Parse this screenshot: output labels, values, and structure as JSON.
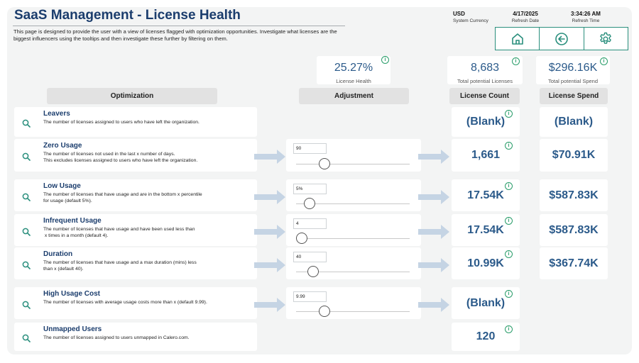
{
  "header": {
    "title": "SaaS Management - License Health",
    "description": "This page is designed to provide the user with a view of licenses flagged with optimization opportunities.  Investigate what licenses are the biggest influencers using the tooltips and then investigate these further by filtering on them.",
    "currency": {
      "value": "USD",
      "label": "System Currency"
    },
    "refresh_date": {
      "value": "4/17/2025",
      "label": "Refresh Date"
    },
    "refresh_time": {
      "value": "3:34:26 AM",
      "label": "Refresh Time"
    }
  },
  "nav": {
    "icons": [
      "home-icon",
      "back-arrow-icon",
      "settings-gear-icon"
    ]
  },
  "kpis": {
    "license_health": {
      "value": "25.27%",
      "label": "License Health"
    },
    "total_licenses": {
      "value": "8,683",
      "label": "Total potential Licenses"
    },
    "total_spend": {
      "value": "$296.16K",
      "label": "Total potential Spend"
    }
  },
  "columns": {
    "optimization": "Optimization",
    "adjustment": "Adjustment",
    "license_count": "License Count",
    "license_spend": "License Spend"
  },
  "rows": [
    {
      "name": "Leavers",
      "desc": [
        "The number of licenses assigned to users who have left the organization."
      ],
      "adjust": null,
      "count": "(Blank)",
      "spend": "(Blank)"
    },
    {
      "name": "Zero Usage",
      "desc": [
        "The number of licenses not used in the last x number of days.",
        "This excludes licenses assigned to users who have left the organization."
      ],
      "adjust": {
        "value": "90",
        "slider_fraction": 0.2
      },
      "count": "1,661",
      "spend": "$70.91K"
    },
    {
      "name": "Low Usage",
      "desc": [
        "The number of licenses that have usage and are in the bottom x percentile",
        "for usage (default 5%)."
      ],
      "adjust": {
        "value": "5%",
        "slider_fraction": 0.07
      },
      "count": "17.54K",
      "spend": "$587.83K"
    },
    {
      "name": "Infrequent Usage",
      "desc": [
        "The number of licenses that have usage and have been used less than",
        " x times in a month (default 4)."
      ],
      "adjust": {
        "value": "4",
        "slider_fraction": 0.0
      },
      "count": "17.54K",
      "spend": "$587.83K"
    },
    {
      "name": "Duration",
      "desc": [
        "The number of licenses that have usage and a max duration (mins) less",
        "than x (default 40)."
      ],
      "adjust": {
        "value": "40",
        "slider_fraction": 0.1
      },
      "count": "10.99K",
      "spend": "$367.74K"
    },
    {
      "name": "High Usage Cost",
      "desc": [
        "The number of licenses with average usage costs more than x (default 9.99)."
      ],
      "adjust": {
        "value": "9.99",
        "slider_fraction": 0.2
      },
      "count": "(Blank)",
      "spend": null
    },
    {
      "name": "Unmapped Users",
      "desc": [
        "The number of licenses assigned to users unmapped in Calero.com."
      ],
      "adjust": null,
      "count": "120",
      "spend": null
    }
  ],
  "colors": {
    "title": "#1b3d6d",
    "value": "#2b5a8a",
    "accent": "#2a8f7d",
    "arrow": "#c5d4e4"
  }
}
